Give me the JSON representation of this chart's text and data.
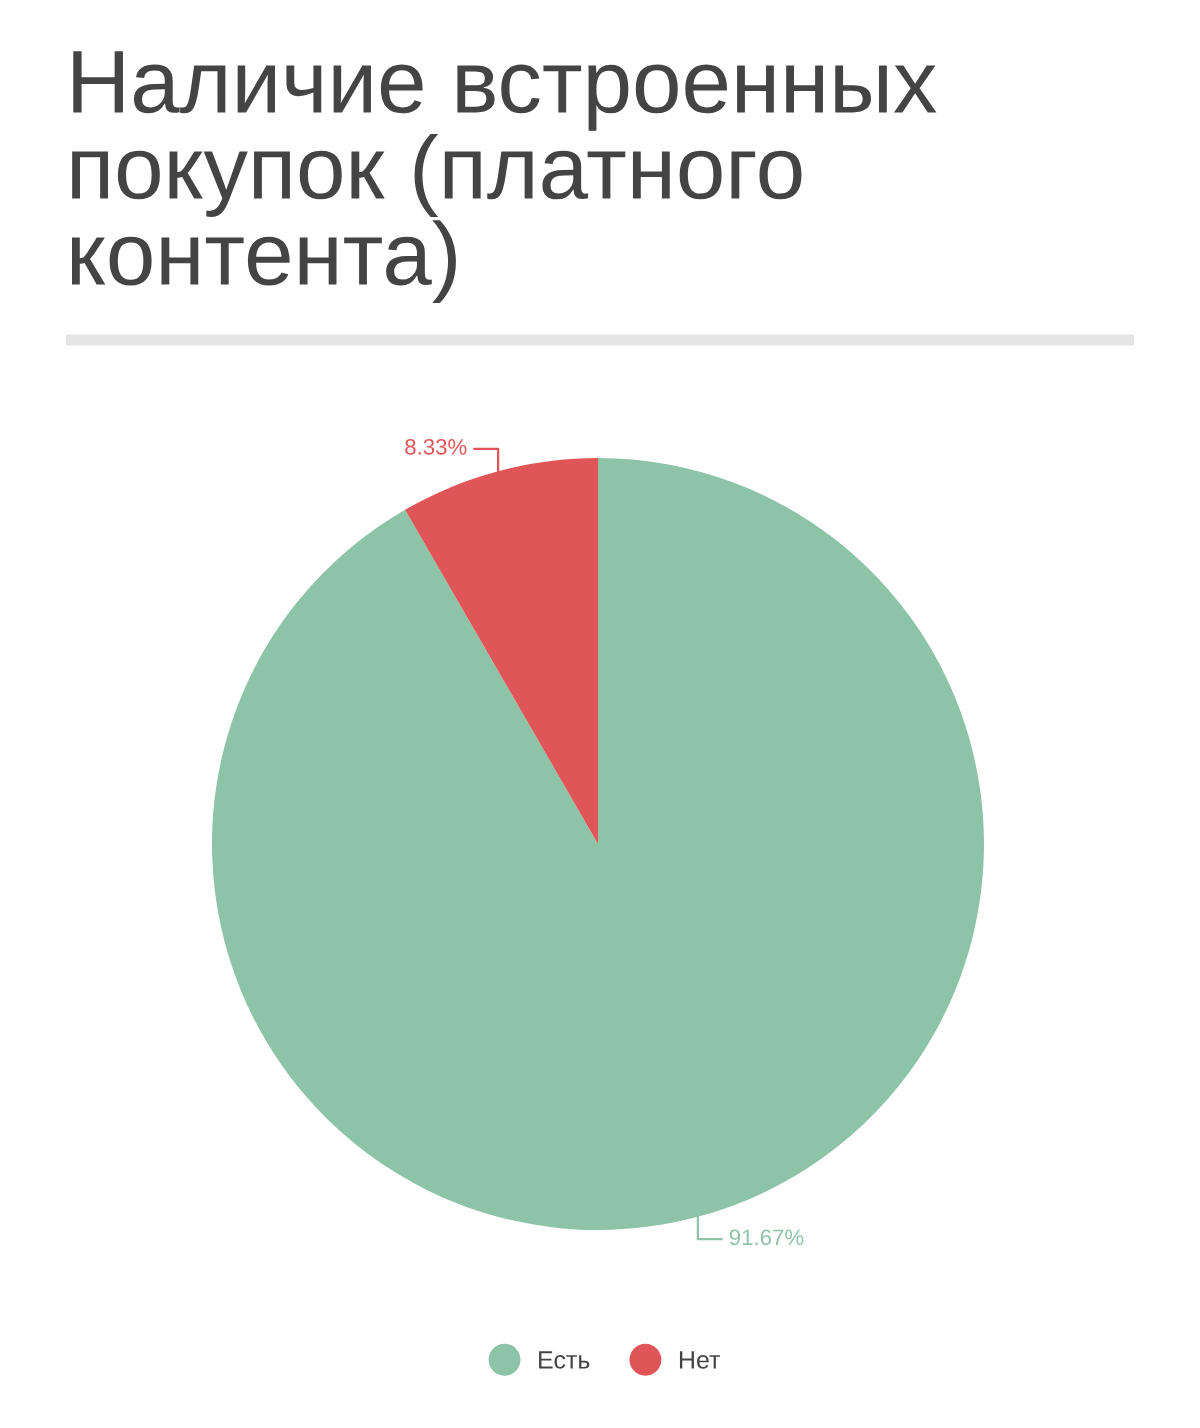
{
  "chart_data": {
    "type": "pie",
    "title": "Наличие встроенных покупок (платного контента)",
    "categories": [
      "Есть",
      "Нет"
    ],
    "values": [
      91.67,
      8.33
    ],
    "colors": [
      "#8dc3a7",
      "#e05558"
    ],
    "value_labels": [
      "91.67%",
      "8.33%"
    ],
    "legend": "bottom"
  }
}
